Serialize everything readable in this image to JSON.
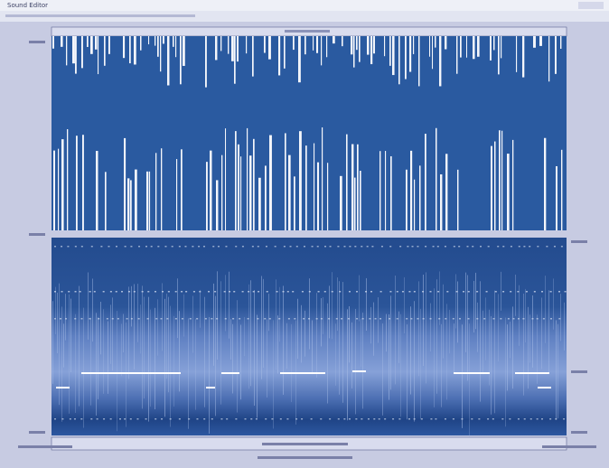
{
  "window": {
    "title": "Sound Editor"
  }
}
